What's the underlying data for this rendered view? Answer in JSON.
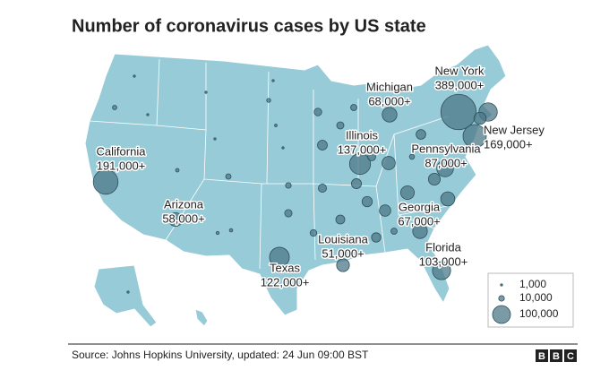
{
  "chart_data": {
    "type": "bubble-map",
    "title": "Number of coronavirus cases by US state",
    "source": "Source: Johns Hopkins University, updated: 24 Jun 09:00 BST",
    "brand": [
      "B",
      "B",
      "C"
    ],
    "color": "#4e7887",
    "map_color": "#98cbd8",
    "states": [
      {
        "name": "New York",
        "value": 389000,
        "value_label": "389,000+"
      },
      {
        "name": "New Jersey",
        "value": 169000,
        "value_label": "169,000+"
      },
      {
        "name": "California",
        "value": 191000,
        "value_label": "191,000+"
      },
      {
        "name": "Michigan",
        "value": 68000,
        "value_label": "68,000+"
      },
      {
        "name": "Illinois",
        "value": 137000,
        "value_label": "137,000+"
      },
      {
        "name": "Pennsylvania",
        "value": 87000,
        "value_label": "87,000+"
      },
      {
        "name": "Arizona",
        "value": 58000,
        "value_label": "58,000+"
      },
      {
        "name": "Georgia",
        "value": 67000,
        "value_label": "67,000+"
      },
      {
        "name": "Louisiana",
        "value": 51000,
        "value_label": "51,000+"
      },
      {
        "name": "Florida",
        "value": 103000,
        "value_label": "103,000+"
      },
      {
        "name": "Texas",
        "value": 122000,
        "value_label": "122,000+"
      }
    ],
    "other_values": [
      105000,
      46000,
      62000,
      58000,
      44000,
      55000,
      40000,
      30000,
      29000,
      27000,
      33000,
      20000,
      25000,
      31000,
      17000,
      14000,
      12000,
      21000,
      18000,
      10000,
      9000,
      4000,
      6000,
      3500,
      3000,
      1500,
      800,
      700,
      900,
      5000,
      12000,
      2000,
      900,
      700,
      600,
      16000,
      8000
    ],
    "legend": [
      {
        "value": 1000,
        "label": "1,000"
      },
      {
        "value": 10000,
        "label": "10,000"
      },
      {
        "value": 100000,
        "label": "100,000"
      }
    ]
  }
}
